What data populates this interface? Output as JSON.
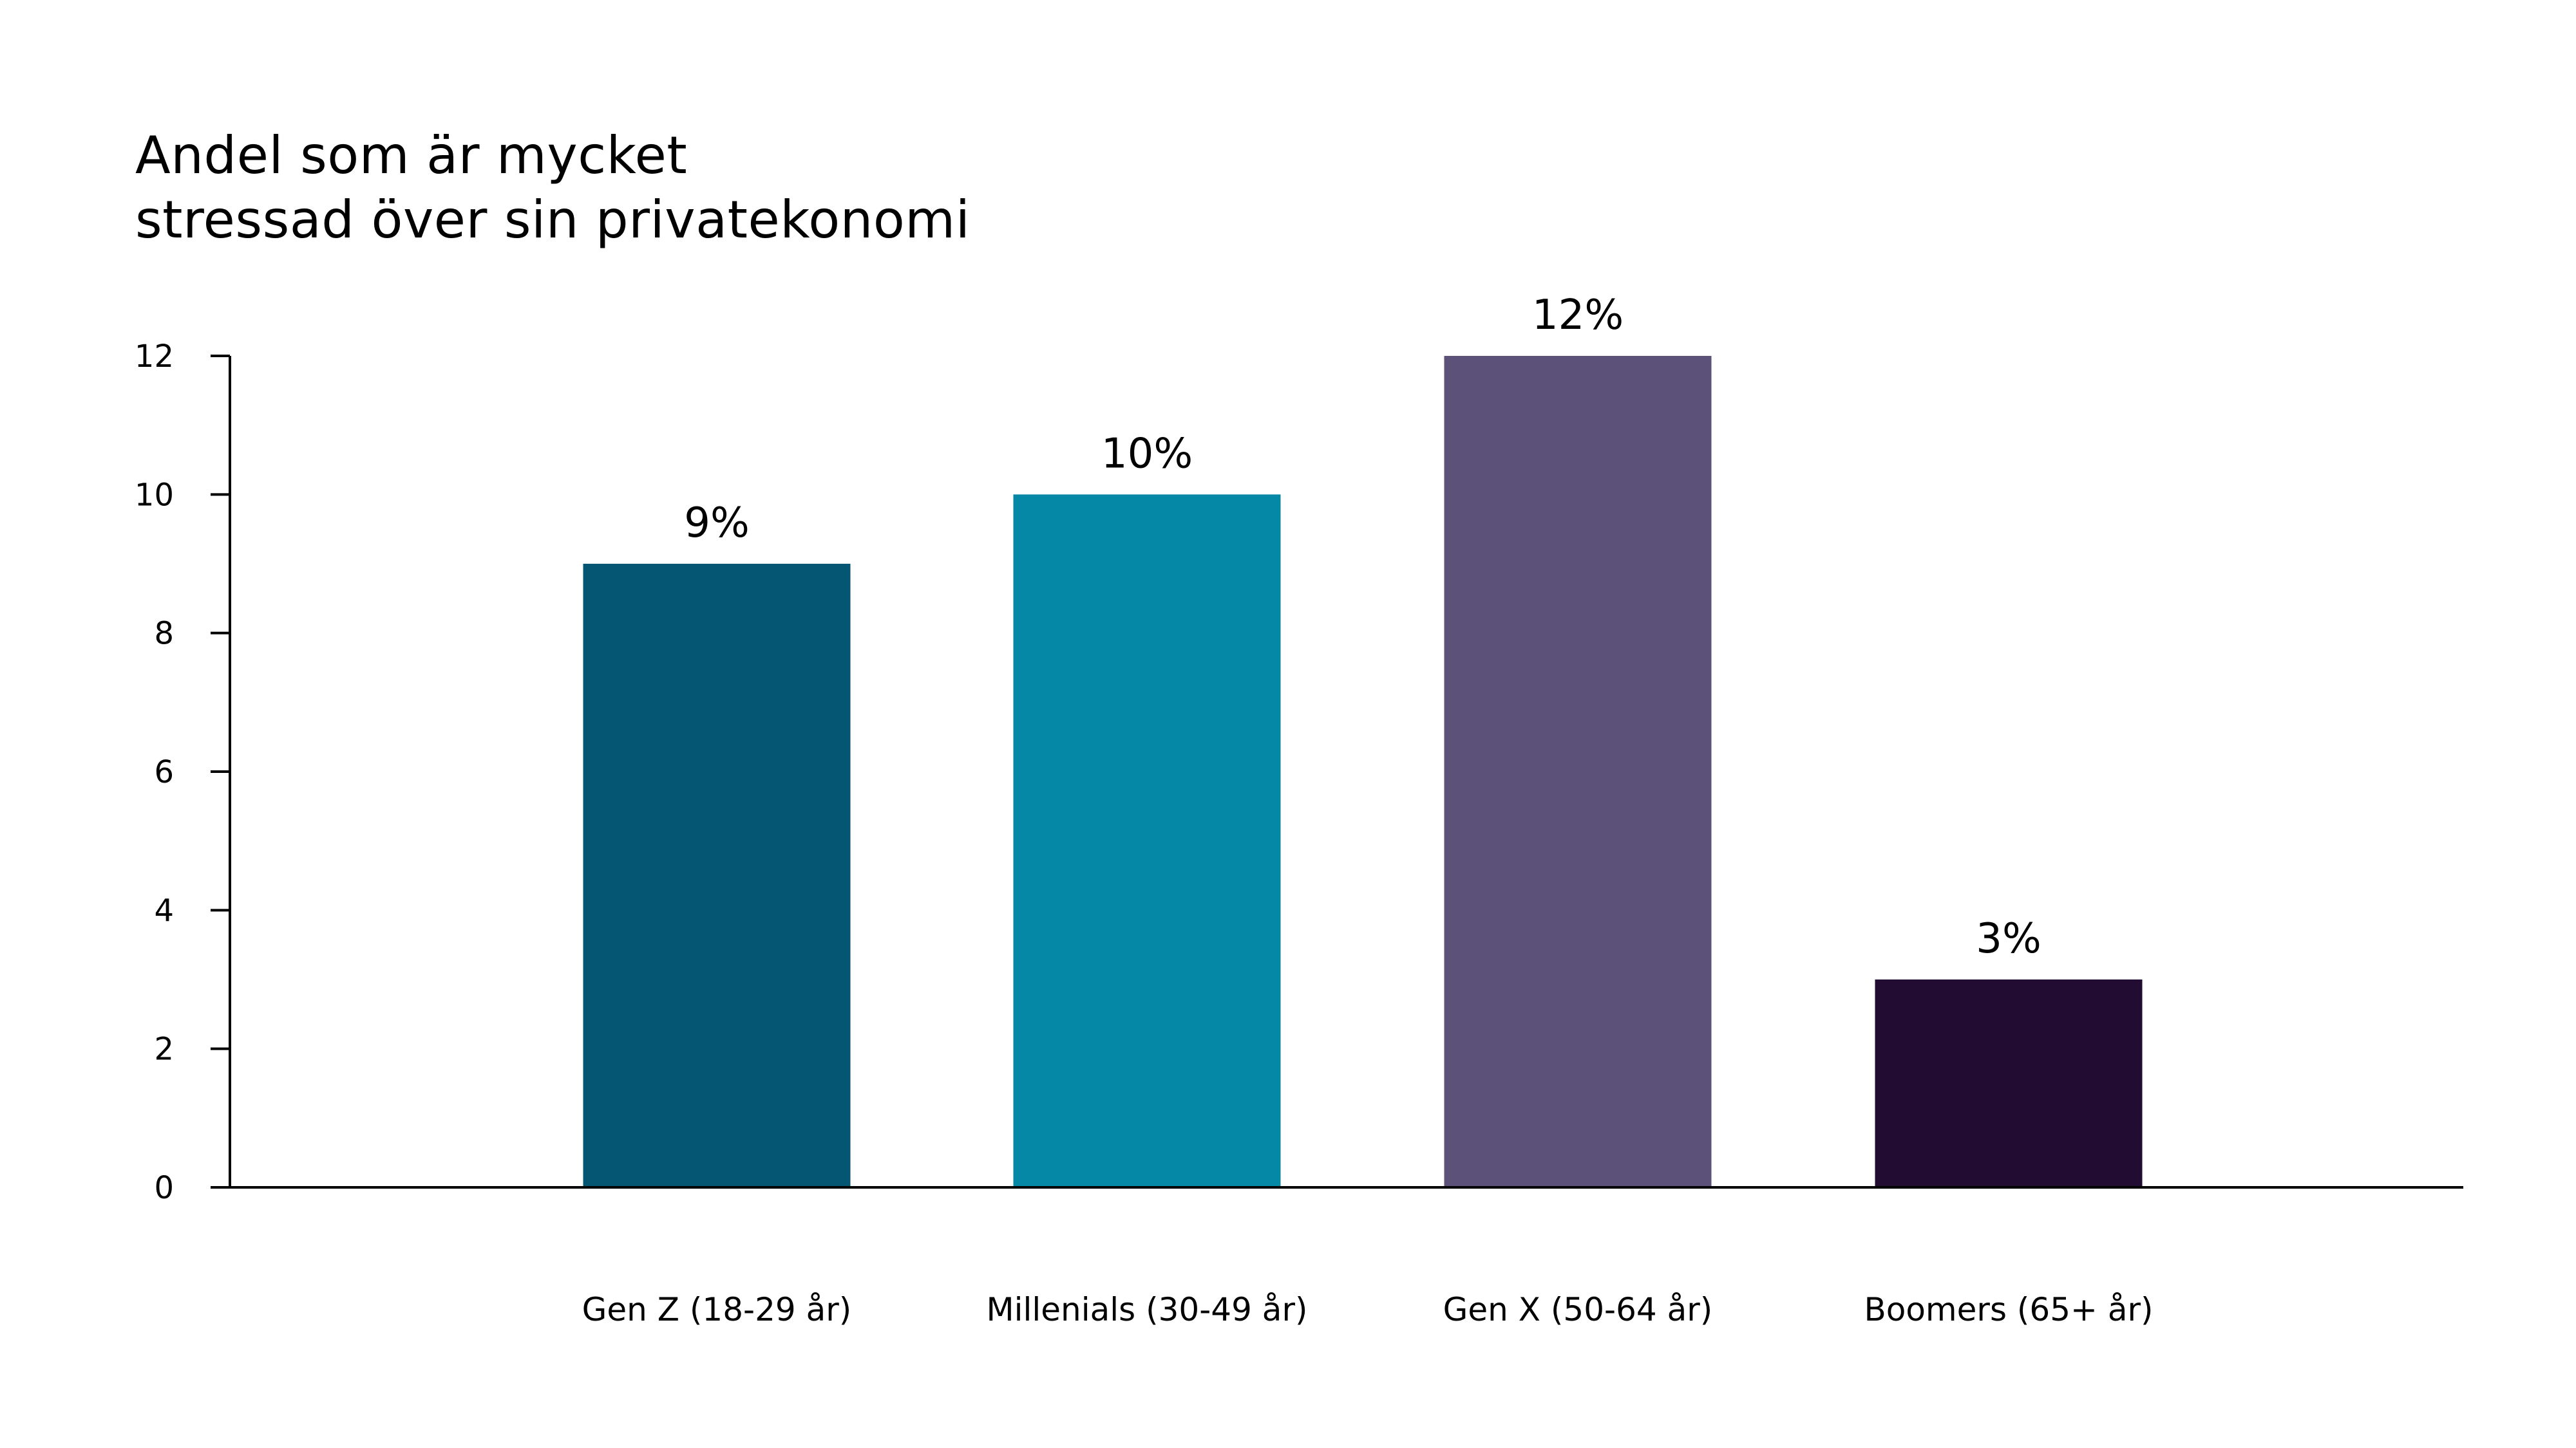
{
  "chart_data": {
    "type": "bar",
    "title_lines": [
      "Andel som är mycket",
      "stressad över sin privatekonomi"
    ],
    "categories": [
      "Gen Z (18-29 år)",
      "Millenials (30-49 år)",
      "Gen X (50-64 år)",
      "Boomers (65+ år)"
    ],
    "values": [
      9,
      10,
      12,
      3
    ],
    "data_labels": [
      "9%",
      "10%",
      "12%",
      "3%"
    ],
    "colors": [
      "#045672",
      "#0587a6",
      "#5c5179",
      "#230c31"
    ],
    "y_ticks": [
      "0",
      "2",
      "4",
      "6",
      "8",
      "10",
      "12"
    ],
    "ylim": [
      0,
      12
    ],
    "grid": false,
    "legend": "none"
  }
}
